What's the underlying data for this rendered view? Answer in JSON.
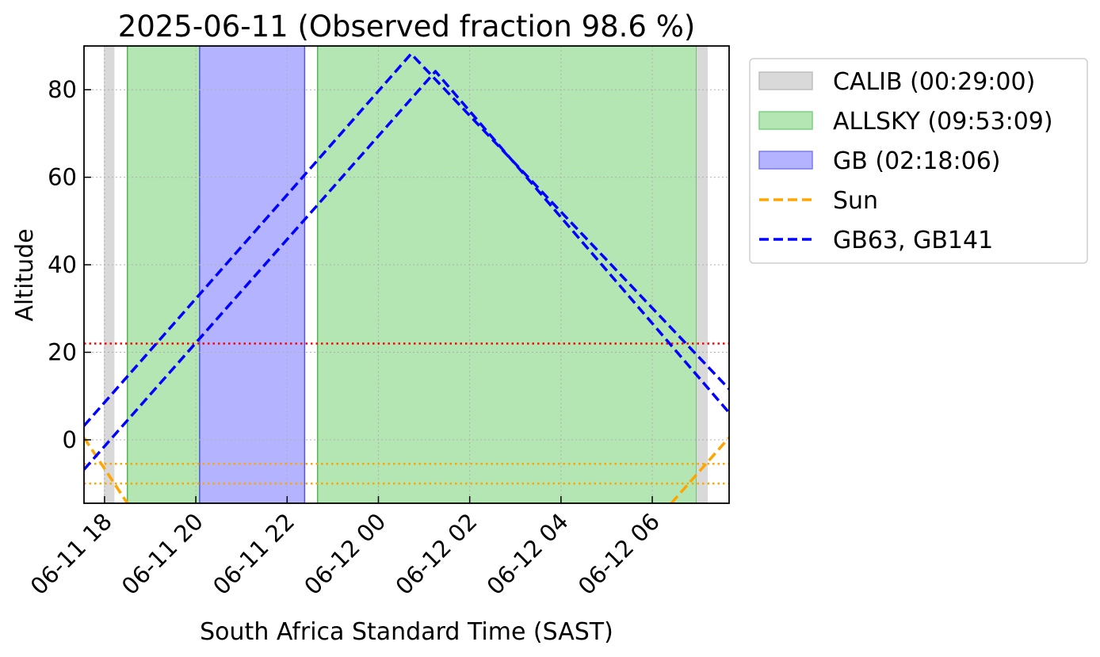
{
  "chart_data": {
    "type": "line",
    "title": "2025-06-11 (Observed fraction 98.6 %)",
    "xlabel": "South Africa Standard Time (SAST)",
    "ylabel": "Altitude",
    "x_unit": "hours",
    "xlim": [
      "06-11 17:33",
      "06-12 07:41"
    ],
    "ylim": [
      -14.5,
      90
    ],
    "grid": true,
    "legend_position": "outside-right",
    "x_ticks": [
      {
        "label": "06-11 18",
        "time": "06-11 18:00"
      },
      {
        "label": "06-11 20",
        "time": "06-11 20:00"
      },
      {
        "label": "06-11 22",
        "time": "06-11 22:00"
      },
      {
        "label": "06-12 00",
        "time": "06-12 00:00"
      },
      {
        "label": "06-12 02",
        "time": "06-12 02:00"
      },
      {
        "label": "06-12 04",
        "time": "06-12 04:00"
      },
      {
        "label": "06-12 06",
        "time": "06-12 06:00"
      }
    ],
    "y_ticks": [
      0,
      20,
      40,
      60,
      80
    ],
    "spans": [
      {
        "name": "CALIB (00:29:00)",
        "kind": "calib",
        "color": "#d9d9d9",
        "start": "06-11 17:59",
        "end": "06-11 18:13"
      },
      {
        "name": "ALLSKY (09:53:09)",
        "kind": "allsky",
        "color": "#b3e6b3",
        "edge": "#55b455",
        "start": "06-11 18:30",
        "end": "06-11 20:05"
      },
      {
        "name": "GB (02:18:06)",
        "kind": "gb",
        "color": "#b3b3ff",
        "edge": "#5555ee",
        "start": "06-11 20:05",
        "end": "06-11 22:23"
      },
      {
        "kind": "allsky",
        "color": "#b3e6b3",
        "edge": "#55b455",
        "start": "06-11 22:40",
        "end": "06-12 06:58"
      },
      {
        "kind": "calib",
        "color": "#d9d9d9",
        "start": "06-12 06:58",
        "end": "06-12 07:13"
      }
    ],
    "hlines": [
      {
        "y": 22,
        "color": "#ff0000"
      },
      {
        "y": -5.5,
        "color": "#ffa500"
      },
      {
        "y": -10,
        "color": "#ffa500"
      }
    ],
    "series": [
      {
        "name": "Sun",
        "color": "#ffa500",
        "style": "dashed",
        "points": [
          [
            "06-11 17:33",
            0.5
          ],
          [
            "06-11 18:30",
            -14.5
          ]
        ]
      },
      {
        "color": "#ffa500",
        "style": "dashed",
        "points": [
          [
            "06-12 06:25",
            -14.5
          ],
          [
            "06-12 07:41",
            0.5
          ]
        ]
      },
      {
        "name": "GB63, GB141",
        "color": "#0000ff",
        "style": "dashed",
        "points": [
          [
            "06-11 17:33",
            3.2
          ],
          [
            "06-12 00:43",
            88.2
          ],
          [
            "06-12 07:41",
            11.6
          ]
        ]
      },
      {
        "color": "#0000ff",
        "style": "dashed",
        "points": [
          [
            "06-11 17:33",
            -6.8
          ],
          [
            "06-12 01:15",
            84.2
          ],
          [
            "06-12 07:41",
            6.2
          ]
        ]
      }
    ],
    "legend": [
      {
        "label": "CALIB (00:29:00)",
        "marker": "patch",
        "color": "#d9d9d9",
        "edge": "#bdbdbd"
      },
      {
        "label": "ALLSKY (09:53:09)",
        "marker": "patch",
        "color": "#b3e6b3",
        "edge": "#7fcf7f"
      },
      {
        "label": "GB (02:18:06)",
        "marker": "patch",
        "color": "#b3b3ff",
        "edge": "#7a7aee"
      },
      {
        "label": "Sun",
        "marker": "line",
        "color": "#ffa500"
      },
      {
        "label": "GB63, GB141",
        "marker": "line",
        "color": "#0000ff"
      }
    ]
  }
}
